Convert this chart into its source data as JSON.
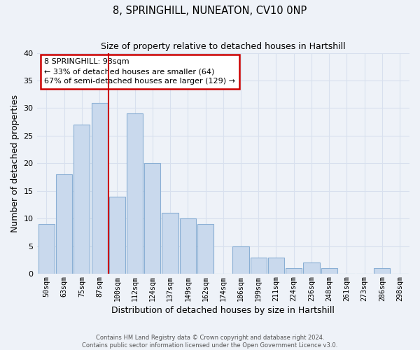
{
  "title": "8, SPRINGHILL, NUNEATON, CV10 0NP",
  "subtitle": "Size of property relative to detached houses in Hartshill",
  "xlabel": "Distribution of detached houses by size in Hartshill",
  "ylabel": "Number of detached properties",
  "bar_labels": [
    "50sqm",
    "63sqm",
    "75sqm",
    "87sqm",
    "100sqm",
    "112sqm",
    "124sqm",
    "137sqm",
    "149sqm",
    "162sqm",
    "174sqm",
    "186sqm",
    "199sqm",
    "211sqm",
    "224sqm",
    "236sqm",
    "248sqm",
    "261sqm",
    "273sqm",
    "286sqm",
    "298sqm"
  ],
  "bar_values": [
    9,
    18,
    27,
    31,
    14,
    29,
    20,
    11,
    10,
    9,
    0,
    5,
    3,
    3,
    1,
    2,
    1,
    0,
    0,
    1,
    0
  ],
  "bar_color": "#c9d9ed",
  "bar_edge_color": "#8aafd4",
  "vline_x": 3.5,
  "vline_color": "#cc0000",
  "ylim": [
    0,
    40
  ],
  "yticks": [
    0,
    5,
    10,
    15,
    20,
    25,
    30,
    35,
    40
  ],
  "annotation_text": "8 SPRINGHILL: 93sqm\n← 33% of detached houses are smaller (64)\n67% of semi-detached houses are larger (129) →",
  "annotation_box_color": "#ffffff",
  "annotation_box_edge_color": "#cc0000",
  "footer_line1": "Contains HM Land Registry data © Crown copyright and database right 2024.",
  "footer_line2": "Contains public sector information licensed under the Open Government Licence v3.0.",
  "background_color": "#eef2f8",
  "grid_color": "#d8e0ee"
}
